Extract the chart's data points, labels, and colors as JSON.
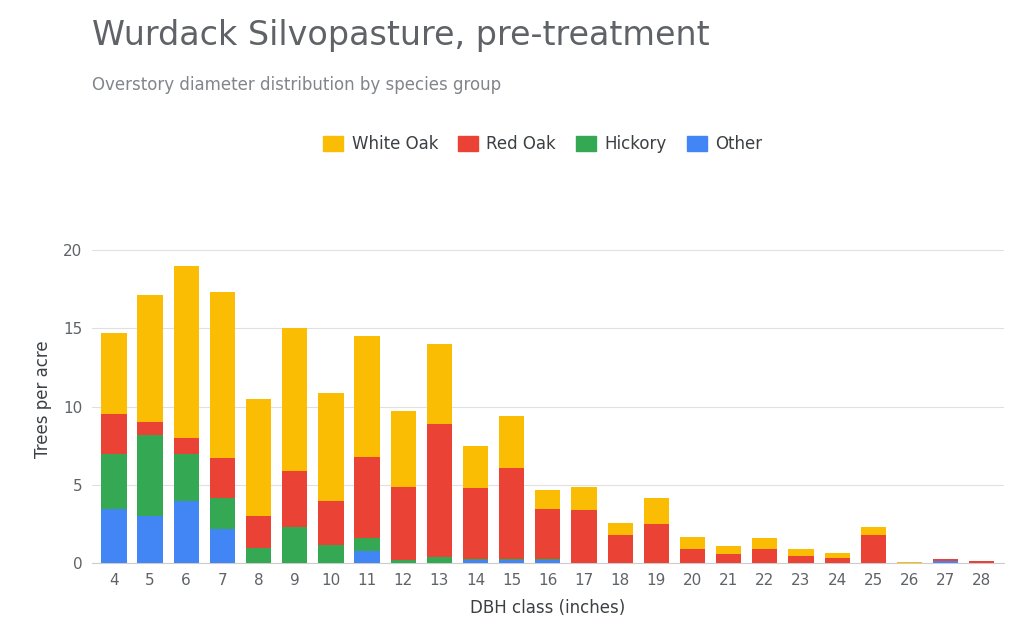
{
  "title": "Wurdack Silvopasture, pre-treatment",
  "subtitle": "Overstory diameter distribution by species group",
  "xlabel": "DBH class (inches)",
  "ylabel": "Trees per acre",
  "categories": [
    4,
    5,
    6,
    7,
    8,
    9,
    10,
    11,
    12,
    13,
    14,
    15,
    16,
    17,
    18,
    19,
    20,
    21,
    22,
    23,
    24,
    25,
    26,
    27,
    28
  ],
  "white_oak": [
    5.2,
    8.1,
    11.0,
    10.6,
    7.5,
    9.1,
    6.9,
    7.7,
    4.8,
    5.1,
    2.7,
    3.3,
    1.2,
    1.5,
    0.8,
    1.7,
    0.8,
    0.5,
    0.7,
    0.4,
    0.3,
    0.5,
    0.05,
    0.05,
    0.05
  ],
  "red_oak": [
    2.5,
    0.8,
    1.0,
    2.5,
    2.0,
    3.6,
    2.8,
    5.2,
    4.7,
    8.5,
    4.5,
    5.8,
    3.2,
    3.4,
    1.8,
    2.5,
    0.9,
    0.6,
    0.9,
    0.5,
    0.35,
    1.8,
    0.05,
    0.1,
    0.12
  ],
  "hickory": [
    3.5,
    5.2,
    3.0,
    2.0,
    1.0,
    2.3,
    1.2,
    0.8,
    0.2,
    0.4,
    0.1,
    0.1,
    0.05,
    0.0,
    0.0,
    0.0,
    0.0,
    0.0,
    0.0,
    0.0,
    0.0,
    0.0,
    0.0,
    0.0,
    0.0
  ],
  "other": [
    3.5,
    3.0,
    4.0,
    2.2,
    0.0,
    0.0,
    0.0,
    0.8,
    0.0,
    0.0,
    0.2,
    0.2,
    0.2,
    0.0,
    0.0,
    0.0,
    0.0,
    0.0,
    0.0,
    0.0,
    0.0,
    0.0,
    0.0,
    0.15,
    0.0
  ],
  "colors": {
    "white_oak": "#FBBC04",
    "red_oak": "#EA4335",
    "hickory": "#34A853",
    "other": "#4285F4"
  },
  "ylim": [
    0,
    21
  ],
  "yticks": [
    0,
    5,
    10,
    15,
    20
  ],
  "background_color": "#ffffff",
  "title_color": "#5f6368",
  "subtitle_color": "#80868b",
  "axis_label_color": "#3c4043",
  "tick_color": "#5f6368",
  "grid_color": "#e0e0e0",
  "title_fontsize": 24,
  "subtitle_fontsize": 12,
  "axis_label_fontsize": 12,
  "tick_fontsize": 11,
  "legend_fontsize": 12,
  "bar_width": 0.7
}
